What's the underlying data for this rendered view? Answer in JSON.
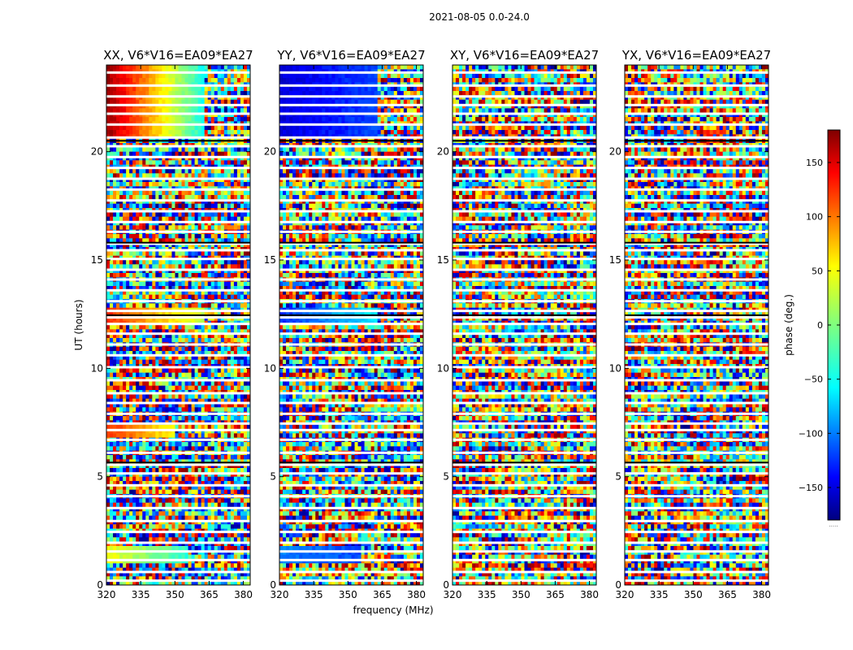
{
  "figure": {
    "suptitle": "2021-08-05 0.0-24.0",
    "xlabel": "frequency (MHz)",
    "ylabel": "UT (hours)",
    "colorbar_label": "phase (deg.)",
    "colorbar_footer": "....."
  },
  "chart_data": {
    "type": "heatmap",
    "colormap": "jet",
    "description_of_values": "Phase waterfall (UT vs frequency) for baseline V6*V16=EA09*EA27 in four polarizations",
    "panels": [
      {
        "title": "XX, V6*V16=EA09*EA27"
      },
      {
        "title": "YY, V6*V16=EA09*EA27"
      },
      {
        "title": "XY, V6*V16=EA09*EA27"
      },
      {
        "title": "YX, V6*V16=EA09*EA27"
      }
    ],
    "xlim": [
      320,
      383
    ],
    "ylim": [
      0,
      24
    ],
    "x_ticks": [
      320,
      335,
      350,
      365,
      380
    ],
    "y_ticks": [
      0,
      5,
      10,
      15,
      20
    ],
    "colorbar": {
      "vmin": -180,
      "vmax": 180,
      "ticks": [
        150,
        100,
        50,
        0,
        -50,
        -100,
        -150
      ],
      "tick_labels": [
        "150",
        "100",
        "50",
        "0",
        "−50",
        "−100",
        "−150"
      ]
    },
    "flagged_ut_hours": [
      0.2,
      0.6,
      1.15,
      1.55,
      1.95,
      2.45,
      2.95,
      3.55,
      4.1,
      4.6,
      5.15,
      5.55,
      6.1,
      6.7,
      7.15,
      7.45,
      7.9,
      8.4,
      8.85,
      9.45,
      10.05,
      10.6,
      11.1,
      11.6,
      12.05,
      12.35,
      12.65,
      13.1,
      13.6,
      14.1,
      14.55,
      15.05,
      15.45,
      15.75,
      16.3,
      16.75,
      17.25,
      17.75,
      18.25,
      18.75,
      19.25,
      19.75,
      20.25,
      20.65,
      21.25,
      21.75,
      22.15,
      22.55,
      23.05,
      23.65
    ],
    "coherent_segments": [
      {
        "panel": 0,
        "ut": [
          20.6,
          24.0
        ],
        "freq": [
          320,
          362
        ],
        "phase_start": 170,
        "phase_end": -40
      },
      {
        "panel": 1,
        "ut": [
          20.6,
          24.0
        ],
        "freq": [
          320,
          362
        ],
        "phase_start": -150,
        "phase_end": -110
      },
      {
        "panel": 0,
        "ut": [
          12.0,
          12.8
        ],
        "freq": [
          320,
          362
        ],
        "phase_start": 120,
        "phase_end": 20
      },
      {
        "panel": 1,
        "ut": [
          12.0,
          12.8
        ],
        "freq": [
          320,
          362
        ],
        "phase_start": -120,
        "phase_end": -50
      },
      {
        "panel": 0,
        "ut": [
          6.7,
          7.4
        ],
        "freq": [
          320,
          350
        ],
        "phase_start": 120,
        "phase_end": 40
      },
      {
        "panel": 0,
        "ut": [
          1.1,
          1.7
        ],
        "freq": [
          320,
          355
        ],
        "phase_start": 40,
        "phase_end": -30
      },
      {
        "panel": 1,
        "ut": [
          1.1,
          1.7
        ],
        "freq": [
          320,
          355
        ],
        "phase_start": -90,
        "phase_end": -110
      }
    ]
  }
}
